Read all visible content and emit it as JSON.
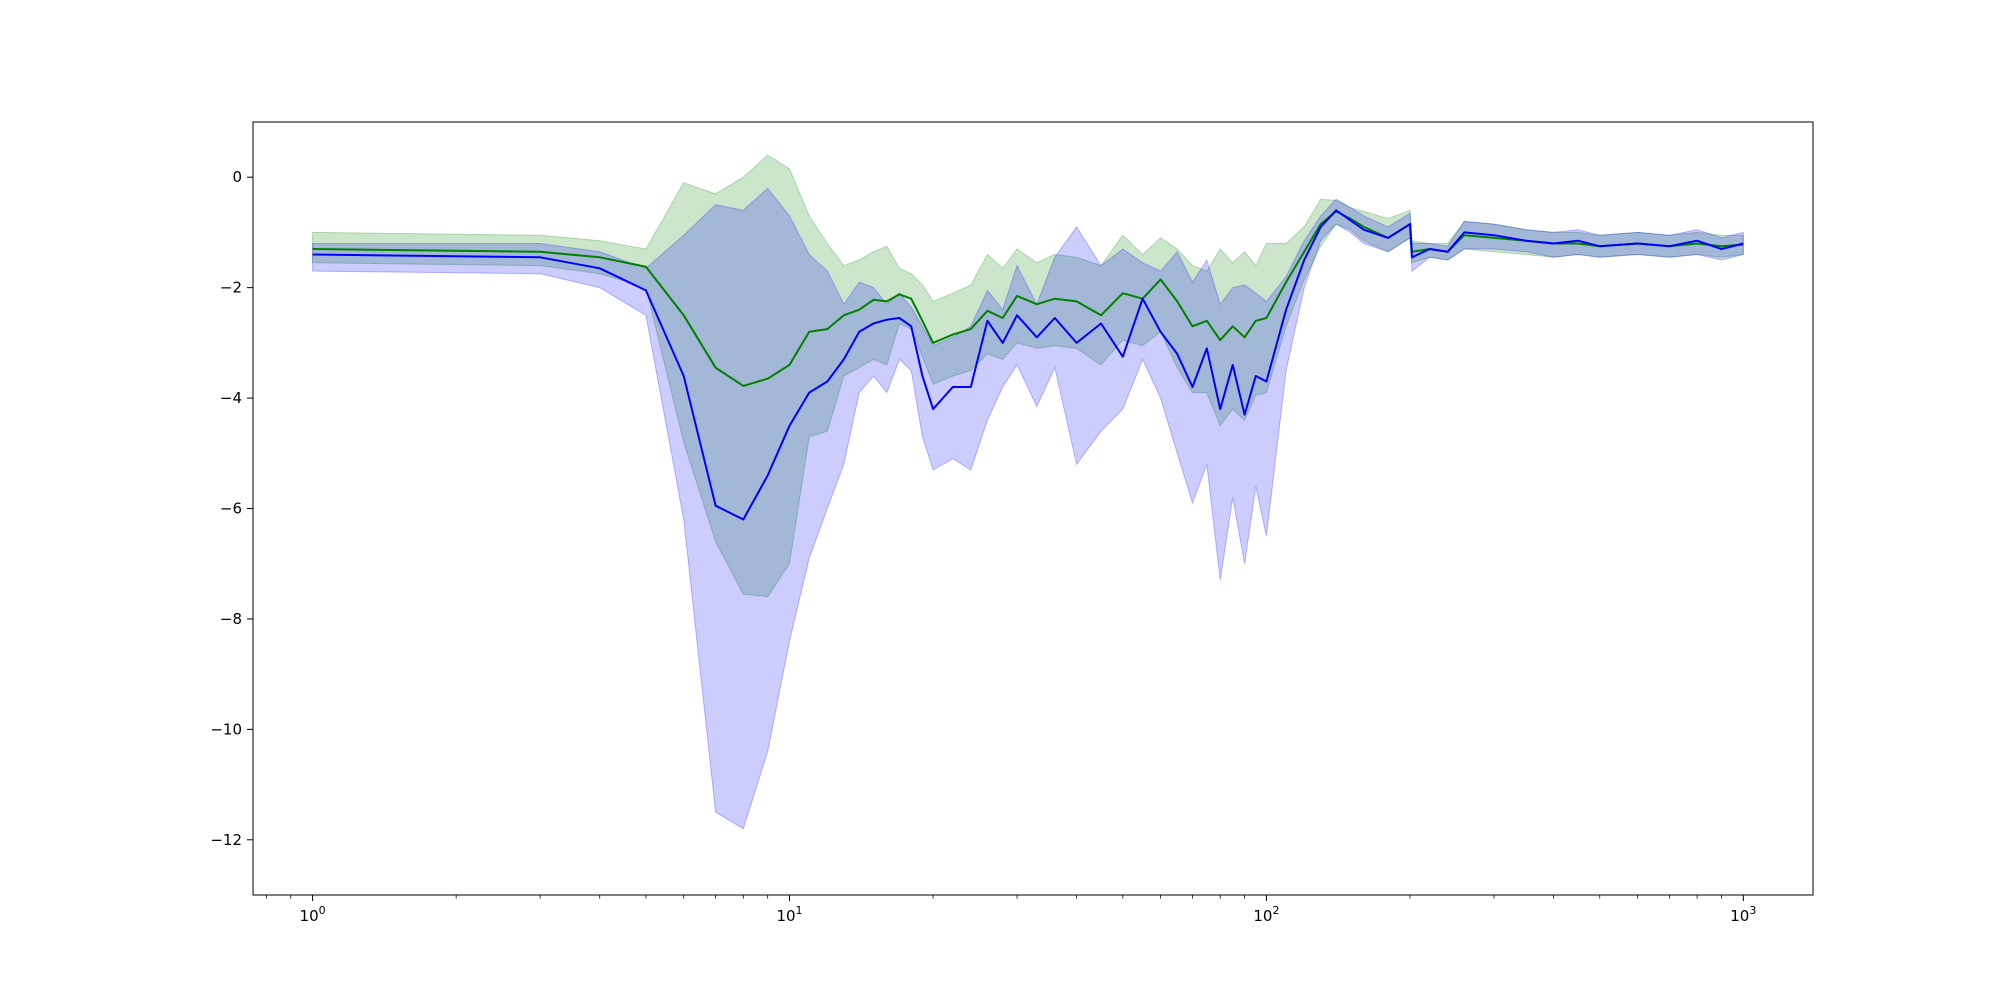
{
  "chart_data": {
    "type": "line",
    "title": "",
    "xlabel": "",
    "ylabel": "",
    "xscale": "log",
    "xlim": [
      0.75,
      1400
    ],
    "ylim": [
      -13.0,
      1.0
    ],
    "grid": false,
    "legend": false,
    "x_ticks": [
      {
        "value": 1,
        "label": "10^0"
      },
      {
        "value": 10,
        "label": "10^1"
      },
      {
        "value": 100,
        "label": "10^2"
      },
      {
        "value": 1000,
        "label": "10^3"
      }
    ],
    "y_ticks": [
      {
        "value": 0,
        "label": "0"
      },
      {
        "value": -2,
        "label": "−2"
      },
      {
        "value": -4,
        "label": "−4"
      },
      {
        "value": -6,
        "label": "−6"
      },
      {
        "value": -8,
        "label": "−8"
      },
      {
        "value": -10,
        "label": "−10"
      },
      {
        "value": -12,
        "label": "−12"
      }
    ],
    "series": [
      {
        "color": "#008000",
        "band_color": "#008000",
        "band_opacity": 0.2,
        "x": [
          1,
          3,
          4,
          5,
          6,
          7,
          8,
          9,
          10,
          11,
          12,
          13,
          14,
          15,
          16,
          17,
          18,
          19,
          20,
          22,
          24,
          26,
          28,
          30,
          33,
          36,
          40,
          45,
          50,
          55,
          60,
          65,
          70,
          75,
          80,
          85,
          90,
          95,
          100,
          110,
          120,
          130,
          140,
          150,
          160,
          180,
          200,
          202,
          220,
          240,
          260,
          300,
          350,
          400,
          450,
          500,
          600,
          700,
          800,
          900,
          1000
        ],
        "y": [
          -1.3,
          -1.35,
          -1.45,
          -1.62,
          -2.5,
          -3.45,
          -3.78,
          -3.65,
          -3.4,
          -2.8,
          -2.75,
          -2.5,
          -2.4,
          -2.22,
          -2.25,
          -2.12,
          -2.2,
          -2.6,
          -3.0,
          -2.85,
          -2.75,
          -2.42,
          -2.55,
          -2.15,
          -2.3,
          -2.2,
          -2.25,
          -2.5,
          -2.1,
          -2.2,
          -1.85,
          -2.25,
          -2.7,
          -2.6,
          -2.95,
          -2.7,
          -2.9,
          -2.6,
          -2.55,
          -1.9,
          -1.35,
          -0.85,
          -0.62,
          -0.75,
          -0.9,
          -1.1,
          -0.85,
          -1.35,
          -1.3,
          -1.35,
          -1.05,
          -1.1,
          -1.15,
          -1.2,
          -1.2,
          -1.25,
          -1.2,
          -1.25,
          -1.2,
          -1.25,
          -1.22
        ],
        "upper": [
          -1.0,
          -1.05,
          -1.15,
          -1.3,
          -0.1,
          -0.3,
          0.0,
          0.4,
          0.15,
          -0.7,
          -1.2,
          -1.6,
          -1.5,
          -1.35,
          -1.25,
          -1.65,
          -1.75,
          -1.95,
          -2.25,
          -2.1,
          -1.95,
          -1.4,
          -1.65,
          -1.3,
          -1.55,
          -1.4,
          -1.45,
          -1.6,
          -1.05,
          -1.4,
          -1.1,
          -1.3,
          -1.6,
          -1.7,
          -1.3,
          -1.55,
          -1.35,
          -1.6,
          -1.2,
          -1.2,
          -0.9,
          -0.4,
          -0.42,
          -0.55,
          -0.62,
          -0.75,
          -0.6,
          -1.15,
          -1.2,
          -1.2,
          -0.8,
          -0.85,
          -0.95,
          -1.0,
          -1.0,
          -1.05,
          -1.0,
          -1.05,
          -1.0,
          -1.05,
          -1.05
        ],
        "lower": [
          -1.55,
          -1.6,
          -1.75,
          -2.0,
          -4.8,
          -6.6,
          -7.55,
          -7.6,
          -7.0,
          -4.7,
          -4.6,
          -3.6,
          -3.45,
          -3.3,
          -3.4,
          -2.65,
          -2.75,
          -3.25,
          -3.75,
          -3.6,
          -3.5,
          -3.2,
          -3.3,
          -3.0,
          -3.1,
          -3.05,
          -3.1,
          -3.4,
          -2.95,
          -3.05,
          -2.8,
          -3.45,
          -3.9,
          -3.9,
          -4.5,
          -4.2,
          -4.4,
          -3.95,
          -3.9,
          -2.7,
          -1.85,
          -1.25,
          -0.85,
          -0.95,
          -1.15,
          -1.35,
          -1.1,
          -1.55,
          -1.45,
          -1.5,
          -1.3,
          -1.35,
          -1.4,
          -1.45,
          -1.4,
          -1.45,
          -1.4,
          -1.45,
          -1.4,
          -1.45,
          -1.4
        ]
      },
      {
        "color": "#0000ff",
        "band_color": "#0000ff",
        "band_opacity": 0.2,
        "x": [
          1,
          3,
          4,
          5,
          6,
          7,
          8,
          9,
          10,
          11,
          12,
          13,
          14,
          15,
          16,
          17,
          18,
          19,
          20,
          22,
          24,
          26,
          28,
          30,
          33,
          36,
          40,
          45,
          50,
          55,
          60,
          65,
          70,
          75,
          80,
          85,
          90,
          95,
          100,
          110,
          120,
          130,
          140,
          150,
          160,
          180,
          200,
          202,
          220,
          240,
          260,
          300,
          350,
          400,
          450,
          500,
          600,
          700,
          800,
          900,
          1000
        ],
        "y": [
          -1.4,
          -1.45,
          -1.65,
          -2.05,
          -3.6,
          -5.95,
          -6.2,
          -5.4,
          -4.5,
          -3.9,
          -3.7,
          -3.3,
          -2.8,
          -2.65,
          -2.58,
          -2.55,
          -2.7,
          -3.6,
          -4.2,
          -3.8,
          -3.8,
          -2.6,
          -3.0,
          -2.5,
          -2.9,
          -2.55,
          -3.0,
          -2.65,
          -3.25,
          -2.2,
          -2.8,
          -3.2,
          -3.8,
          -3.1,
          -4.2,
          -3.4,
          -4.3,
          -3.6,
          -3.7,
          -2.4,
          -1.5,
          -0.9,
          -0.6,
          -0.78,
          -0.95,
          -1.1,
          -0.85,
          -1.45,
          -1.3,
          -1.35,
          -1.0,
          -1.05,
          -1.15,
          -1.2,
          -1.15,
          -1.25,
          -1.2,
          -1.25,
          -1.15,
          -1.3,
          -1.2
        ],
        "upper": [
          -1.2,
          -1.2,
          -1.35,
          -1.65,
          -1.05,
          -0.5,
          -0.6,
          -0.2,
          -0.7,
          -1.4,
          -1.7,
          -2.3,
          -1.9,
          -2.0,
          -2.3,
          -2.1,
          -2.35,
          -2.7,
          -3.05,
          -2.9,
          -2.7,
          -2.05,
          -2.4,
          -1.6,
          -2.3,
          -1.45,
          -0.9,
          -1.6,
          -1.3,
          -1.55,
          -1.7,
          -1.35,
          -1.9,
          -1.5,
          -2.3,
          -2.0,
          -1.95,
          -2.1,
          -2.25,
          -1.8,
          -1.15,
          -0.7,
          -0.4,
          -0.55,
          -0.7,
          -0.9,
          -0.65,
          -1.2,
          -1.2,
          -1.25,
          -0.8,
          -0.85,
          -0.95,
          -1.0,
          -0.95,
          -1.05,
          -1.0,
          -1.05,
          -0.95,
          -1.1,
          -1.0
        ],
        "lower": [
          -1.7,
          -1.75,
          -2.0,
          -2.5,
          -6.2,
          -11.5,
          -11.8,
          -10.4,
          -8.4,
          -6.9,
          -6.0,
          -5.2,
          -3.9,
          -3.6,
          -3.9,
          -3.3,
          -3.5,
          -4.7,
          -5.3,
          -5.1,
          -5.3,
          -4.4,
          -3.8,
          -3.4,
          -4.15,
          -3.45,
          -5.2,
          -4.6,
          -4.2,
          -3.3,
          -4.0,
          -5.0,
          -5.9,
          -5.2,
          -7.3,
          -5.8,
          -7.0,
          -5.6,
          -6.5,
          -3.5,
          -2.0,
          -1.15,
          -0.85,
          -1.0,
          -1.2,
          -1.35,
          -1.1,
          -1.7,
          -1.45,
          -1.5,
          -1.3,
          -1.3,
          -1.35,
          -1.45,
          -1.4,
          -1.45,
          -1.4,
          -1.45,
          -1.4,
          -1.5,
          -1.4
        ]
      }
    ]
  }
}
